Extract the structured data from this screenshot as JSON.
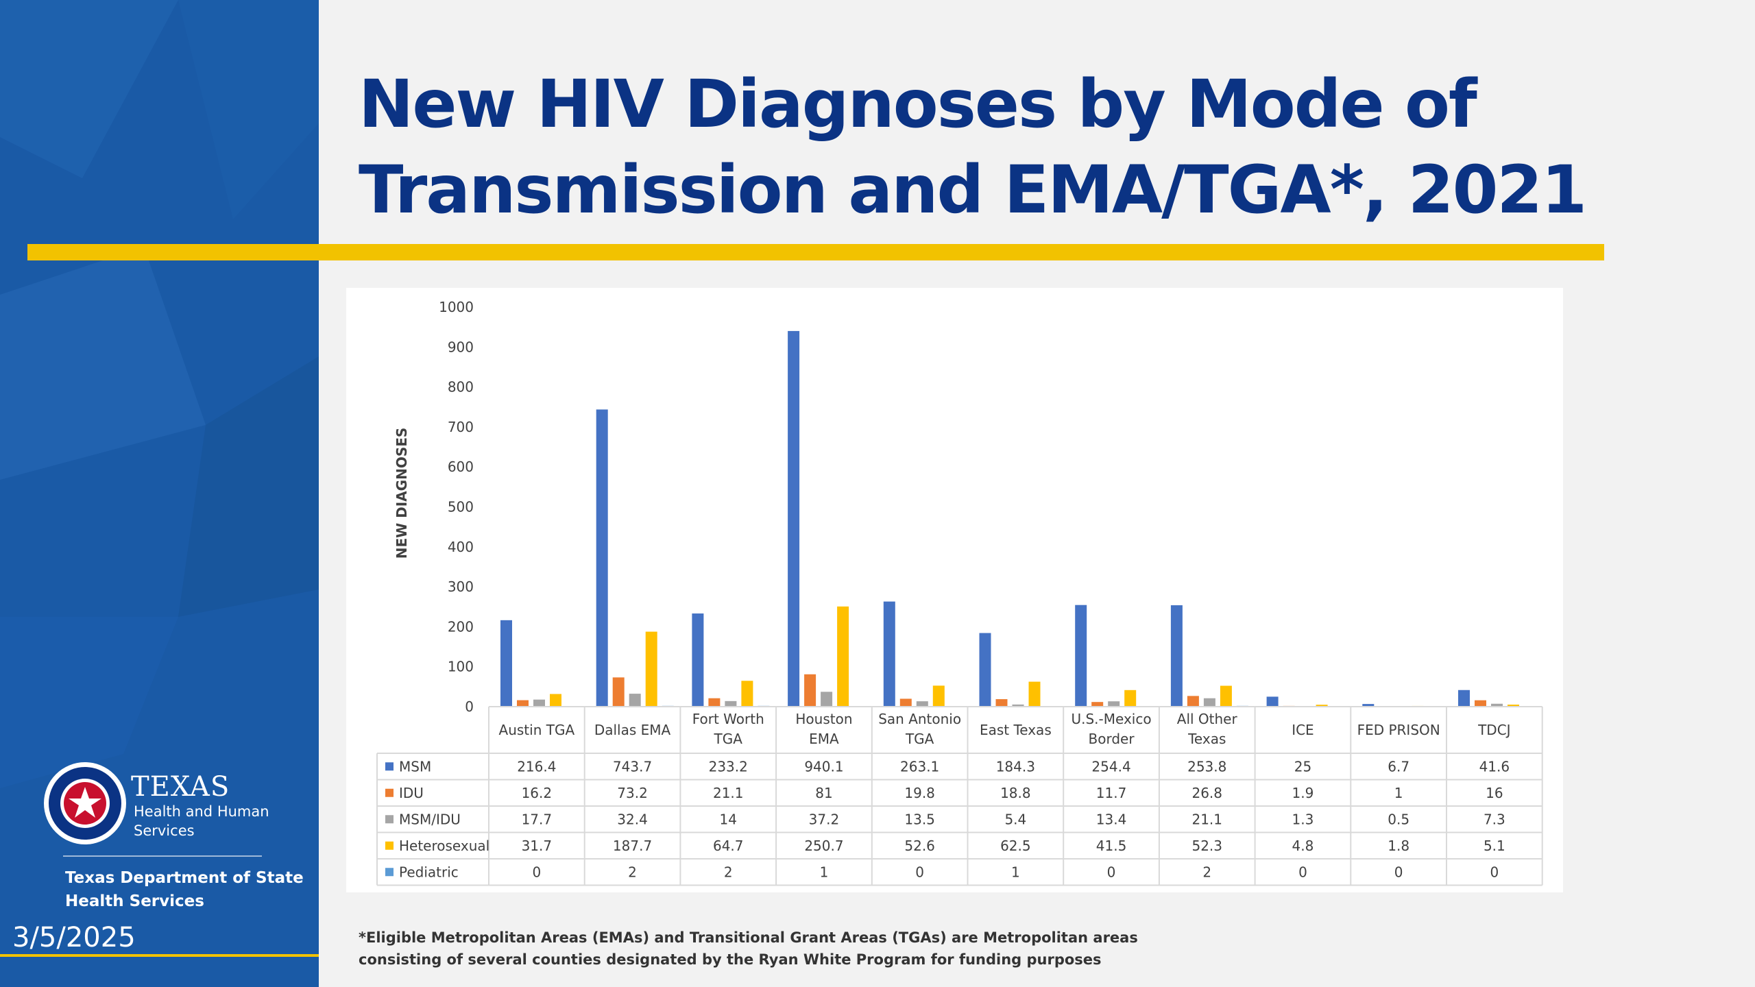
{
  "slide": {
    "title_line1": "New HIV Diagnoses by Mode of",
    "title_line2": "Transmission and EMA/TGA*, 2021",
    "date": "3/5/2025",
    "footnote_line1": "*Eligible Metropolitan Areas (EMAs) and Transitional Grant Areas (TGAs) are Metropolitan areas",
    "footnote_line2": "consisting of several counties designated by the Ryan White Program for funding purposes",
    "colors": {
      "sidebar": "#1a5aa6",
      "title": "#0b3384",
      "accent_gold": "#f2c200"
    }
  },
  "logo": {
    "wordmark": "TEXAS",
    "sub1": "Health and Human",
    "sub2": "Services",
    "department_line1": "Texas Department of State",
    "department_line2": "Health Services"
  },
  "chart_data": {
    "type": "bar",
    "ylabel": "NEW DIAGNOSES",
    "ylim": [
      0,
      1000
    ],
    "yticks": [
      0,
      100,
      200,
      300,
      400,
      500,
      600,
      700,
      800,
      900,
      1000
    ],
    "grid": false,
    "legend": "data-table",
    "categories": [
      [
        "Austin TGA"
      ],
      [
        "Dallas EMA"
      ],
      [
        "Fort Worth",
        "TGA"
      ],
      [
        "Houston",
        "EMA"
      ],
      [
        "San Antonio",
        "TGA"
      ],
      [
        "East Texas"
      ],
      [
        "U.S.-Mexico",
        "Border"
      ],
      [
        "All Other",
        "Texas"
      ],
      [
        "ICE"
      ],
      [
        "FED PRISON"
      ],
      [
        "TDCJ"
      ]
    ],
    "series": [
      {
        "name": "MSM",
        "color": "#4472c4",
        "values": [
          216.4,
          743.7,
          233.2,
          940.1,
          263.1,
          184.3,
          254.4,
          253.8,
          25,
          6.7,
          41.6
        ]
      },
      {
        "name": "IDU",
        "color": "#ed7d31",
        "values": [
          16.2,
          73.2,
          21.1,
          81,
          19.8,
          18.8,
          11.7,
          26.8,
          1.9,
          1,
          16
        ]
      },
      {
        "name": "MSM/IDU",
        "color": "#a5a5a5",
        "values": [
          17.7,
          32.4,
          14,
          37.2,
          13.5,
          5.4,
          13.4,
          21.1,
          1.3,
          0.5,
          7.3
        ]
      },
      {
        "name": "Heterosexual",
        "color": "#ffc000",
        "values": [
          31.7,
          187.7,
          64.7,
          250.7,
          52.6,
          62.5,
          41.5,
          52.3,
          4.8,
          1.8,
          5.1
        ]
      },
      {
        "name": "Pediatric",
        "color": "#5b9bd5",
        "values": [
          0,
          2,
          2,
          1,
          0,
          1,
          0,
          2,
          0,
          0,
          0
        ]
      }
    ]
  }
}
